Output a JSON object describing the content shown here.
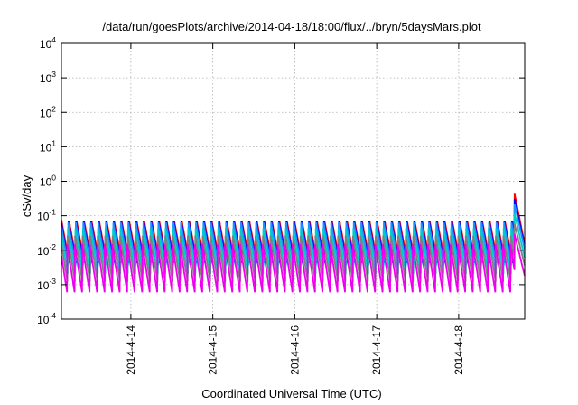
{
  "chart_data": {
    "type": "line",
    "title": "/data/run/goesPlots/archive/2014-04-18/18:00/flux/../bryn/5daysMars.plot",
    "xlabel": "Coordinated Universal Time (UTC)",
    "ylabel": "cSv/day",
    "y_scale": "log",
    "ylim": [
      0.0001,
      10000
    ],
    "y_ticks": [
      {
        "base": "10",
        "exp": "4",
        "value": 10000
      },
      {
        "base": "10",
        "exp": "3",
        "value": 1000
      },
      {
        "base": "10",
        "exp": "2",
        "value": 100
      },
      {
        "base": "10",
        "exp": "1",
        "value": 10
      },
      {
        "base": "10",
        "exp": "0",
        "value": 1
      },
      {
        "base": "10",
        "exp": "-1",
        "value": 0.1
      },
      {
        "base": "10",
        "exp": "-2",
        "value": 0.01
      },
      {
        "base": "10",
        "exp": "-3",
        "value": 0.001
      },
      {
        "base": "10",
        "exp": "-4",
        "value": 0.0001
      }
    ],
    "xlim": [
      "2014-04-13T03:40",
      "2014-04-18T19:20"
    ],
    "x_ticks": [
      {
        "label": "2014-4-14",
        "value": "2014-04-14T00:00"
      },
      {
        "label": "2014-4-15",
        "value": "2014-04-15T00:00"
      },
      {
        "label": "2014-4-16",
        "value": "2014-04-16T00:00"
      },
      {
        "label": "2014-4-17",
        "value": "2014-04-17T00:00"
      },
      {
        "label": "2014-4-18",
        "value": "2014-04-18T00:00"
      }
    ],
    "grid": true,
    "sawtooth_period_hours": 2.2,
    "series": [
      {
        "color": "#ff0000",
        "peak": 0.075,
        "trough": 0.005,
        "end_peak": 0.45
      },
      {
        "color": "#0000ff",
        "peak": 0.07,
        "trough": 0.004,
        "end_peak": 0.32
      },
      {
        "color": "#1e90ff",
        "peak": 0.065,
        "trough": 0.0035,
        "end_peak": 0.22
      },
      {
        "color": "#00cccc",
        "peak": 0.045,
        "trough": 0.002,
        "end_peak": 0.12
      },
      {
        "color": "#808080",
        "peak": 0.028,
        "trough": 0.0012,
        "end_peak": 0.06
      },
      {
        "color": "#ee00ee",
        "peak": 0.016,
        "trough": 0.0006,
        "end_peak": 0.03
      }
    ]
  }
}
